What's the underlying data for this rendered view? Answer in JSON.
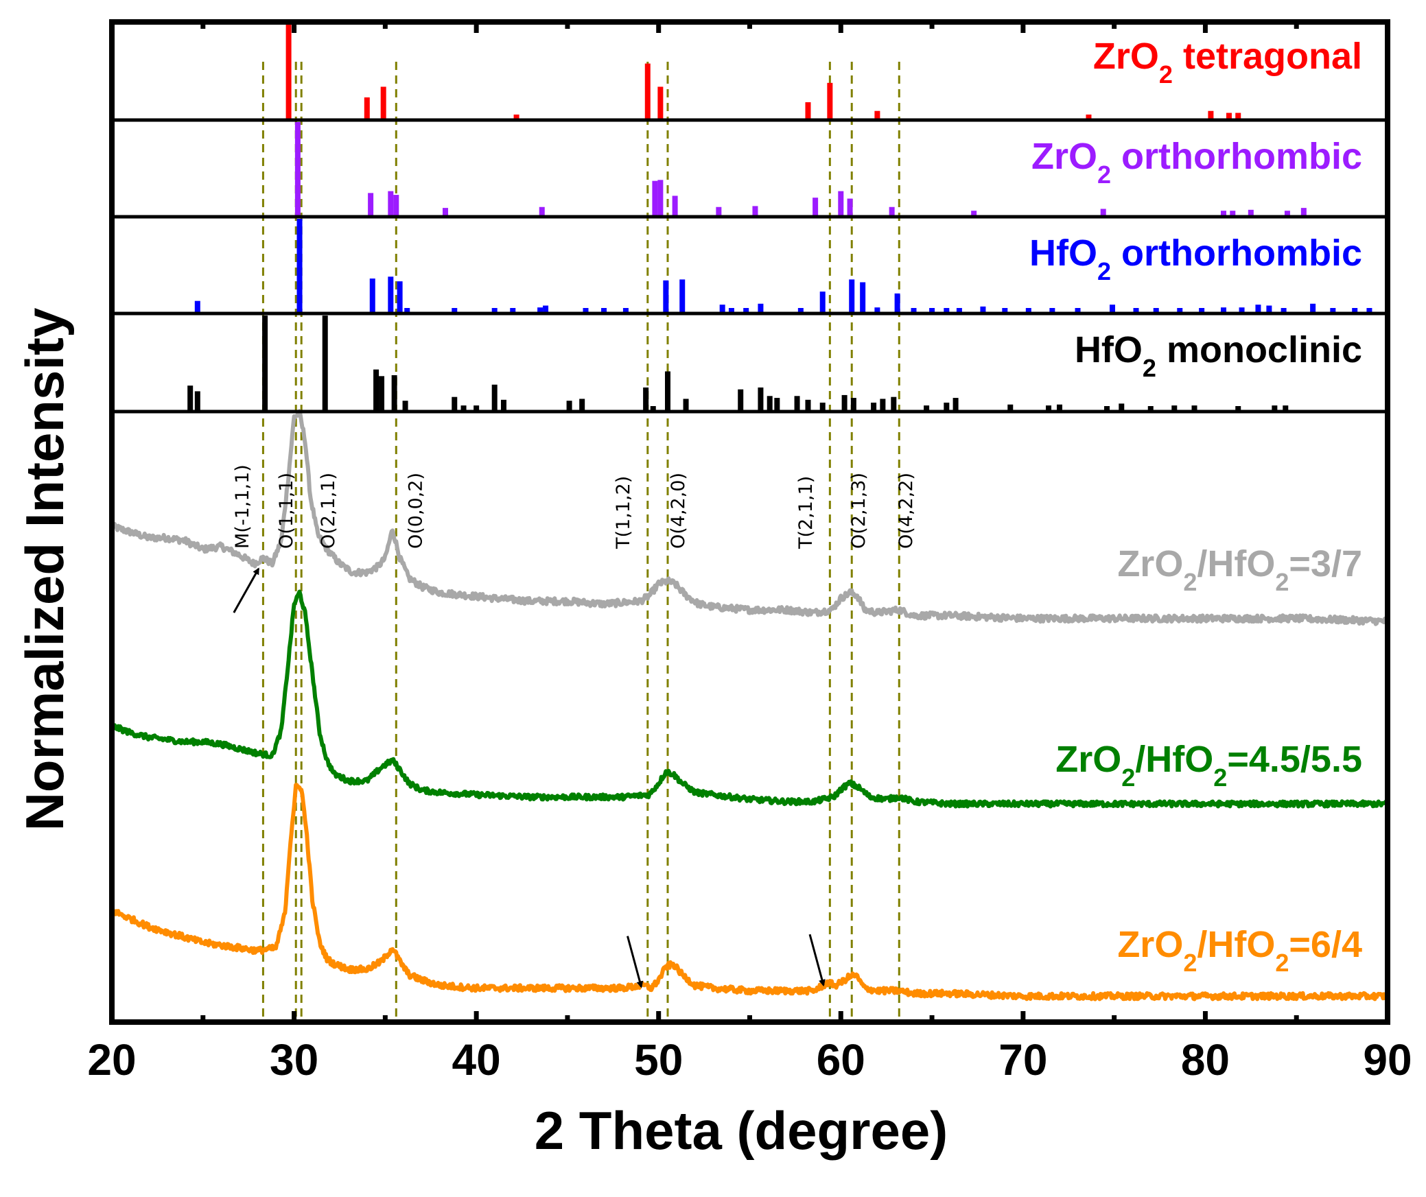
{
  "chart_data": {
    "type": "line",
    "title": "",
    "xlabel": "2 Theta (degree)",
    "ylabel": "Normalized Intensity",
    "xlim": [
      20,
      90
    ],
    "xticks": [
      20,
      30,
      40,
      50,
      60,
      70,
      80,
      90
    ],
    "xtick_labels": [
      "20",
      "30",
      "40",
      "50",
      "60",
      "70",
      "80",
      "90"
    ],
    "reference_patterns": [
      {
        "name": "ZrO2 tetragonal",
        "label_main": "ZrO",
        "label_sub": "2",
        "label_rest": " tetragonal",
        "color": "#ff0000",
        "peaks": [
          [
            29.7,
            100
          ],
          [
            34.0,
            22
          ],
          [
            34.9,
            33
          ],
          [
            42.2,
            4
          ],
          [
            49.4,
            57
          ],
          [
            50.1,
            33
          ],
          [
            58.2,
            17
          ],
          [
            59.4,
            37
          ],
          [
            62.0,
            8
          ],
          [
            73.6,
            4
          ],
          [
            80.3,
            8
          ],
          [
            81.3,
            6
          ],
          [
            81.8,
            6
          ]
        ]
      },
      {
        "name": "ZrO2 orthorhombic",
        "label_main": "ZrO",
        "label_sub": "2",
        "label_rest": " orthorhombic",
        "color": "#9c1cff",
        "peaks": [
          [
            30.2,
            100
          ],
          [
            34.2,
            24
          ],
          [
            35.3,
            26
          ],
          [
            35.6,
            22
          ],
          [
            38.3,
            8
          ],
          [
            43.6,
            9
          ],
          [
            49.8,
            37
          ],
          [
            50.1,
            38
          ],
          [
            50.9,
            21
          ],
          [
            53.3,
            9
          ],
          [
            55.3,
            10
          ],
          [
            58.6,
            19
          ],
          [
            60.0,
            26
          ],
          [
            60.5,
            18
          ],
          [
            62.8,
            9
          ],
          [
            67.3,
            5
          ],
          [
            74.4,
            7
          ],
          [
            81.0,
            5
          ],
          [
            81.5,
            5
          ],
          [
            82.5,
            6
          ],
          [
            84.5,
            5
          ],
          [
            85.4,
            8
          ]
        ]
      },
      {
        "name": "HfO2 orthorhombic",
        "label_main": "HfO",
        "label_sub": "2",
        "label_rest": " orthorhombic",
        "color": "#0000ff",
        "peaks": [
          [
            24.7,
            12
          ],
          [
            30.3,
            100
          ],
          [
            34.3,
            36
          ],
          [
            35.3,
            38
          ],
          [
            35.8,
            33
          ],
          [
            36.2,
            3
          ],
          [
            38.8,
            3
          ],
          [
            41.0,
            3
          ],
          [
            42.0,
            3
          ],
          [
            43.5,
            5
          ],
          [
            43.8,
            7
          ],
          [
            46.0,
            3
          ],
          [
            47.0,
            3
          ],
          [
            48.2,
            3
          ],
          [
            50.4,
            34
          ],
          [
            51.3,
            35
          ],
          [
            53.5,
            8
          ],
          [
            54.0,
            3
          ],
          [
            54.8,
            3
          ],
          [
            55.6,
            9
          ],
          [
            57.8,
            3
          ],
          [
            59.0,
            22
          ],
          [
            60.6,
            35
          ],
          [
            61.2,
            32
          ],
          [
            62.0,
            5
          ],
          [
            63.1,
            20
          ],
          [
            64.0,
            3
          ],
          [
            65.0,
            3
          ],
          [
            65.8,
            3
          ],
          [
            66.5,
            3
          ],
          [
            67.8,
            6
          ],
          [
            69.0,
            3
          ],
          [
            70.3,
            3
          ],
          [
            71.6,
            3
          ],
          [
            73.0,
            3
          ],
          [
            74.9,
            8
          ],
          [
            76.2,
            3
          ],
          [
            77.3,
            3
          ],
          [
            78.6,
            3
          ],
          [
            79.8,
            3
          ],
          [
            81.0,
            5
          ],
          [
            82.0,
            5
          ],
          [
            82.9,
            8
          ],
          [
            83.5,
            7
          ],
          [
            84.3,
            4
          ],
          [
            85.9,
            9
          ],
          [
            87.0,
            3
          ],
          [
            88.2,
            4
          ],
          [
            89.0,
            3
          ]
        ]
      },
      {
        "name": "HfO2 monoclinic",
        "label_main": "HfO",
        "label_sub": "2",
        "label_rest": " monoclinic",
        "color": "#000000",
        "peaks": [
          [
            24.3,
            26
          ],
          [
            24.7,
            20
          ],
          [
            28.4,
            100
          ],
          [
            31.7,
            100
          ],
          [
            34.5,
            43
          ],
          [
            34.8,
            36
          ],
          [
            35.5,
            37
          ],
          [
            36.1,
            10
          ],
          [
            38.8,
            14
          ],
          [
            39.3,
            5
          ],
          [
            40.0,
            5
          ],
          [
            41.0,
            27
          ],
          [
            41.5,
            11
          ],
          [
            45.1,
            10
          ],
          [
            45.8,
            12
          ],
          [
            49.3,
            24
          ],
          [
            49.7,
            3
          ],
          [
            50.5,
            41
          ],
          [
            51.5,
            12
          ],
          [
            54.5,
            22
          ],
          [
            55.6,
            24
          ],
          [
            56.1,
            15
          ],
          [
            56.5,
            13
          ],
          [
            57.6,
            15
          ],
          [
            58.2,
            11
          ],
          [
            59.0,
            8
          ],
          [
            60.2,
            16
          ],
          [
            60.7,
            13
          ],
          [
            61.8,
            8
          ],
          [
            62.3,
            12
          ],
          [
            62.9,
            14
          ],
          [
            64.7,
            5
          ],
          [
            65.8,
            8
          ],
          [
            66.3,
            13
          ],
          [
            69.3,
            6
          ],
          [
            71.4,
            5
          ],
          [
            72.0,
            6
          ],
          [
            74.6,
            3
          ],
          [
            75.4,
            7
          ],
          [
            77.0,
            3
          ],
          [
            78.3,
            5
          ],
          [
            79.4,
            5
          ],
          [
            81.8,
            4
          ],
          [
            83.8,
            5
          ],
          [
            84.4,
            5
          ]
        ]
      }
    ],
    "series": [
      {
        "name": "ZrO2/HfO2=3/7",
        "label_parts": [
          "ZrO",
          "2",
          "/HfO",
          "2",
          "=3/7"
        ],
        "color": "#a8a8a8",
        "x": [
          20,
          21,
          22,
          23,
          24,
          25,
          26,
          27,
          27.8,
          28.3,
          28.8,
          29.3,
          29.7,
          30.0,
          30.3,
          30.6,
          30.9,
          31.3,
          31.8,
          32.5,
          33.2,
          34.0,
          34.6,
          35.0,
          35.4,
          35.8,
          36.3,
          37.0,
          38.0,
          39.5,
          41,
          43,
          45,
          47,
          49,
          49.5,
          50.0,
          50.5,
          50.9,
          51.5,
          52.2,
          53,
          55,
          57,
          58.5,
          59.5,
          60.0,
          60.5,
          60.9,
          61.3,
          62,
          63.2,
          64,
          66,
          70,
          75,
          80,
          85,
          90
        ],
        "y": [
          0.34,
          0.32,
          0.3,
          0.3,
          0.29,
          0.26,
          0.27,
          0.24,
          0.21,
          0.23,
          0.21,
          0.29,
          0.52,
          0.72,
          0.73,
          0.64,
          0.44,
          0.31,
          0.26,
          0.21,
          0.18,
          0.18,
          0.2,
          0.23,
          0.33,
          0.23,
          0.16,
          0.13,
          0.11,
          0.1,
          0.09,
          0.08,
          0.08,
          0.07,
          0.08,
          0.1,
          0.14,
          0.15,
          0.14,
          0.1,
          0.07,
          0.06,
          0.05,
          0.05,
          0.04,
          0.05,
          0.09,
          0.11,
          0.1,
          0.05,
          0.04,
          0.05,
          0.03,
          0.03,
          0.02,
          0.02,
          0.02,
          0.02,
          0.01
        ]
      },
      {
        "name": "ZrO2/HfO2=4.5/5.5",
        "label_parts": [
          "ZrO",
          "2",
          "/HfO",
          "2",
          "=4.5/5.5"
        ],
        "color": "#008000",
        "x": [
          20,
          21,
          22,
          23,
          24,
          25,
          26,
          27,
          28,
          28.8,
          29.3,
          29.7,
          30.0,
          30.3,
          30.6,
          31.0,
          31.4,
          31.8,
          32.2,
          33,
          34,
          34.8,
          35.4,
          35.8,
          36.3,
          37,
          38,
          40,
          43,
          46,
          48,
          49.5,
          50.0,
          50.4,
          50.8,
          51.3,
          52,
          53,
          55,
          57,
          58.5,
          59.6,
          60.1,
          60.5,
          61.0,
          61.6,
          62.5,
          63.2,
          64,
          66,
          70,
          75,
          80,
          85,
          90
        ],
        "y": [
          0.37,
          0.34,
          0.32,
          0.31,
          0.3,
          0.3,
          0.29,
          0.27,
          0.25,
          0.24,
          0.35,
          0.66,
          0.9,
          0.95,
          0.86,
          0.6,
          0.34,
          0.22,
          0.16,
          0.13,
          0.13,
          0.19,
          0.22,
          0.18,
          0.12,
          0.09,
          0.08,
          0.07,
          0.06,
          0.06,
          0.06,
          0.07,
          0.12,
          0.17,
          0.16,
          0.12,
          0.08,
          0.07,
          0.05,
          0.04,
          0.04,
          0.06,
          0.1,
          0.12,
          0.1,
          0.06,
          0.05,
          0.06,
          0.04,
          0.03,
          0.03,
          0.03,
          0.03,
          0.03,
          0.03
        ]
      },
      {
        "name": "ZrO2/HfO2=6/4",
        "label_parts": [
          "ZrO",
          "2",
          "/HfO",
          "2",
          "=6/4"
        ],
        "color": "#ff8c00",
        "x": [
          20,
          21,
          22,
          23,
          24,
          25,
          26,
          27,
          28,
          29,
          29.5,
          29.8,
          30.1,
          30.4,
          30.7,
          31.0,
          31.4,
          31.8,
          32.2,
          33,
          34,
          34.8,
          35.4,
          35.8,
          36.3,
          37,
          38,
          40,
          43,
          46,
          48,
          49.2,
          49.6,
          50.0,
          50.4,
          50.8,
          51.3,
          52,
          53,
          55,
          57,
          58.5,
          59.3,
          59.7,
          60.0,
          60.4,
          60.8,
          61.3,
          62,
          63.2,
          64,
          66,
          70,
          75,
          80,
          85,
          90
        ],
        "y": [
          0.34,
          0.31,
          0.28,
          0.26,
          0.24,
          0.22,
          0.21,
          0.2,
          0.19,
          0.2,
          0.33,
          0.6,
          0.8,
          0.8,
          0.62,
          0.38,
          0.22,
          0.16,
          0.14,
          0.12,
          0.12,
          0.15,
          0.2,
          0.15,
          0.1,
          0.08,
          0.06,
          0.05,
          0.05,
          0.05,
          0.05,
          0.06,
          0.05,
          0.08,
          0.13,
          0.14,
          0.1,
          0.06,
          0.05,
          0.04,
          0.04,
          0.04,
          0.07,
          0.06,
          0.07,
          0.09,
          0.1,
          0.05,
          0.04,
          0.04,
          0.03,
          0.03,
          0.02,
          0.02,
          0.02,
          0.02,
          0.02
        ]
      }
    ],
    "reference_lines": [
      28.3,
      30.1,
      30.4,
      35.6,
      49.4,
      50.5,
      59.4,
      60.6,
      63.2
    ],
    "peak_labels": [
      {
        "x": 27.5,
        "text": "M(-1,1,1)"
      },
      {
        "x": 29.9,
        "text": "O(1,1,1)"
      },
      {
        "x": 32.2,
        "text": "O(2,1,1)"
      },
      {
        "x": 37.0,
        "text": "O(0,0,2)"
      },
      {
        "x": 48.4,
        "text": "T(1,1,2)"
      },
      {
        "x": 51.4,
        "text": "O(4,2,0)"
      },
      {
        "x": 58.4,
        "text": "T(2,1,1)"
      },
      {
        "x": 61.3,
        "text": "O(2,1,3)"
      },
      {
        "x": 63.9,
        "text": "O(4,2,2)"
      }
    ],
    "arrows": [
      {
        "series": 0,
        "x": 28.2
      },
      {
        "series": 2,
        "x": 49.2
      },
      {
        "series": 2,
        "x": 59.2
      }
    ]
  }
}
